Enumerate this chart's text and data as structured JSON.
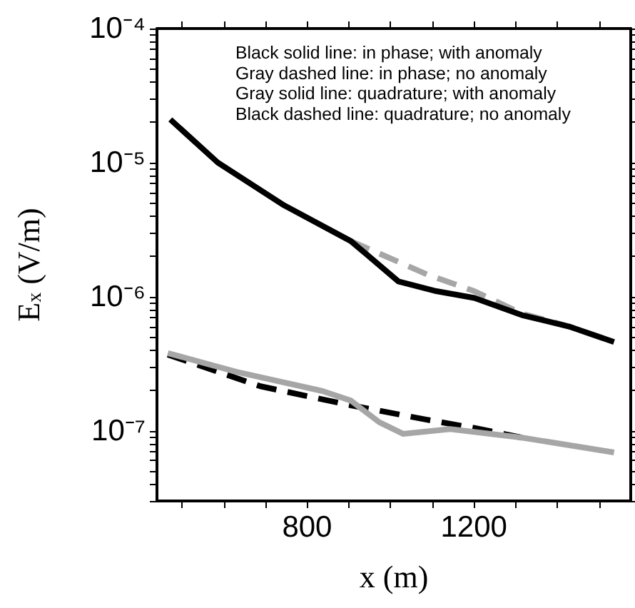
{
  "chart_data": {
    "type": "line",
    "xlabel": "x (m)",
    "ylabel": "E$_{x}$ (V/m)",
    "log": "y",
    "xlim": [
      440,
      1576
    ],
    "ylim": [
      3e-08,
      0.0001
    ],
    "xticks": [
      {
        "value": 500,
        "label": null
      },
      {
        "value": 600,
        "label": null
      },
      {
        "value": 700,
        "label": null
      },
      800,
      {
        "value": 900,
        "label": null
      },
      {
        "value": 1000,
        "label": null
      },
      {
        "value": 1100,
        "label": null
      },
      1200,
      {
        "value": 1300,
        "label": null
      },
      {
        "value": 1400,
        "label": null
      },
      {
        "value": 1500,
        "label": null
      }
    ],
    "yticks": [
      {
        "value": 3e-08,
        "label": null
      },
      {
        "value": 4e-08,
        "label": null
      },
      {
        "value": 5e-08,
        "label": null
      },
      {
        "value": 6e-08,
        "label": null
      },
      {
        "value": 7e-08,
        "label": null
      },
      {
        "value": 8e-08,
        "label": null
      },
      {
        "value": 9e-08,
        "label": null
      },
      {
        "value": 1e-07,
        "label": "10⁻⁷"
      },
      {
        "value": 2e-07,
        "label": null
      },
      {
        "value": 3e-07,
        "label": null
      },
      {
        "value": 4e-07,
        "label": null
      },
      {
        "value": 5e-07,
        "label": null
      },
      {
        "value": 6e-07,
        "label": null
      },
      {
        "value": 7e-07,
        "label": null
      },
      {
        "value": 8e-07,
        "label": null
      },
      {
        "value": 9e-07,
        "label": null
      },
      {
        "value": 1e-06,
        "label": "10⁻⁶"
      },
      {
        "value": 2e-06,
        "label": null
      },
      {
        "value": 3e-06,
        "label": null
      },
      {
        "value": 4e-06,
        "label": null
      },
      {
        "value": 5e-06,
        "label": null
      },
      {
        "value": 6e-06,
        "label": null
      },
      {
        "value": 7e-06,
        "label": null
      },
      {
        "value": 8e-06,
        "label": null
      },
      {
        "value": 9e-06,
        "label": null
      },
      {
        "value": 1e-05,
        "label": "10⁻⁵"
      },
      {
        "value": 2e-05,
        "label": null
      },
      {
        "value": 3e-05,
        "label": null
      },
      {
        "value": 4e-05,
        "label": null
      },
      {
        "value": 5e-05,
        "label": null
      },
      {
        "value": 6e-05,
        "label": null
      },
      {
        "value": 7e-05,
        "label": null
      },
      {
        "value": 8e-05,
        "label": null
      },
      {
        "value": 9e-05,
        "label": null
      },
      {
        "value": 0.0001,
        "label": "10⁻⁴"
      }
    ],
    "grid": false,
    "marker": "none",
    "annotations": [
      "Black solid line: in phase; with anomaly",
      "Gray dashed line: in phase; no anomaly",
      "Gray solid line: quadrature; with anomaly",
      "Black dashed line: quadrature; no anomaly"
    ],
    "series": [
      {
        "color": "#a6a6a6",
        "line_style": "dashed",
        "x": [
          905,
          1087,
          1201,
          1315,
          1428,
          1536
        ],
        "values": [
          2.6e-06,
          1.47e-06,
          1.1e-06,
          7.5e-07,
          6e-07,
          4.6e-07
        ]
      },
      {
        "color": "#000000",
        "line_style": "solid",
        "x": [
          472,
          586,
          745,
          905,
          1019,
          1110,
          1201,
          1315,
          1428,
          1536
        ],
        "values": [
          2.1e-05,
          1e-05,
          4.8e-06,
          2.6e-06,
          1.3e-06,
          1.1e-06,
          9.8e-07,
          7.3e-07,
          6e-07,
          4.6e-07
        ]
      },
      {
        "color": "#000000",
        "line_style": "dashed",
        "x": [
          466,
          688,
          905,
          1087,
          1201,
          1315
        ],
        "values": [
          3.7e-07,
          2.15e-07,
          1.55e-07,
          1.21e-07,
          1.05e-07,
          8.9e-08
        ]
      },
      {
        "color": "#a6a6a6",
        "line_style": "solid",
        "x": [
          466,
          631,
          837,
          905,
          973,
          1030,
          1143,
          1315,
          1536
        ],
        "values": [
          3.8e-07,
          2.75e-07,
          1.98e-07,
          1.68e-07,
          1.16e-07,
          9.5e-08,
          1.03e-07,
          8.9e-08,
          6.9e-08
        ]
      }
    ]
  }
}
